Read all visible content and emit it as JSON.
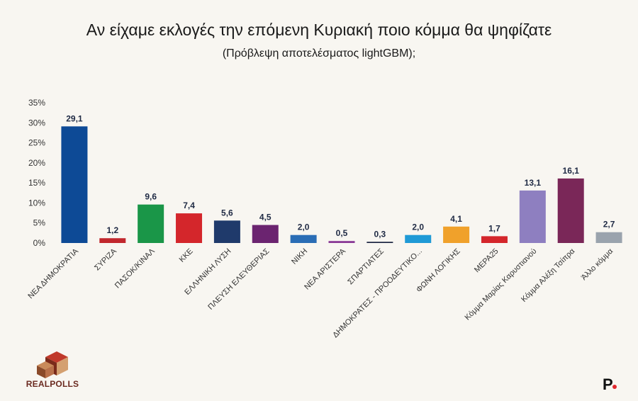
{
  "chart_data": {
    "type": "bar",
    "title": "Αν είχαμε εκλογές την επόμενη Κυριακή ποιο κόμμα θα ψηφίζατε",
    "subtitle": "(Πρόβλεψη αποτελέσματος lightGBM);",
    "xlabel": "",
    "ylabel": "",
    "ylim": [
      0,
      35
    ],
    "yticks": [
      "0%",
      "5%",
      "10%",
      "15%",
      "20%",
      "25%",
      "30%",
      "35%"
    ],
    "grid": false,
    "categories": [
      "ΝΕΑ ΔΗΜΟΚΡΑΤΙΑ",
      "ΣΥΡΙΖΑ",
      "ΠΑΣΟΚ/ΚΙΝΑΛ",
      "ΚΚΕ",
      "ΕΛΛΗΝΙΚΗ ΛΥΣΗ",
      "ΠΛΕΥΣΗ ΕΛΕΥΘΕΡΙΑΣ",
      "ΝΙΚΗ",
      "ΝΕΑ ΑΡΙΣΤΕΡΑ",
      "ΣΠΑΡΤΙΑΤΕΣ",
      "ΔΗΜΟΚΡΑΤΕΣ - ΠΡΟΟΔΕΥΤΙΚΟ...",
      "ΦΩΝΗ ΛΟΓΙΚΗΣ",
      "ΜΕΡΑ25",
      "Κόμμα Μαρίας Καρυστιανού",
      "Κόμμα Αλέξη Τσίπρα",
      "Άλλο κόμμα"
    ],
    "values": [
      29.1,
      1.2,
      9.6,
      7.4,
      5.6,
      4.5,
      2.0,
      0.5,
      0.3,
      2.0,
      4.1,
      1.7,
      13.1,
      16.1,
      2.7
    ],
    "value_labels": [
      "29,1",
      "1,2",
      "9,6",
      "7,4",
      "5,6",
      "4,5",
      "2,0",
      "0,5",
      "0,3",
      "2,0",
      "4,1",
      "1,7",
      "13,1",
      "16,1",
      "2,7"
    ],
    "colors": [
      "#0d4a96",
      "#c1272d",
      "#1a9648",
      "#d4262b",
      "#1f3a6b",
      "#6b2470",
      "#2a6db5",
      "#8a3a96",
      "#1a2440",
      "#1f9ad6",
      "#f0a12b",
      "#d4262b",
      "#8e7fc0",
      "#7a2758",
      "#9aa3ad"
    ]
  },
  "branding": {
    "logo_text": "REALPOLLS",
    "logo_colors": [
      "#c0392b",
      "#7a2a1a",
      "#d4a070"
    ],
    "brand_mark": "P",
    "brand_dot_color": "#e0282e"
  }
}
